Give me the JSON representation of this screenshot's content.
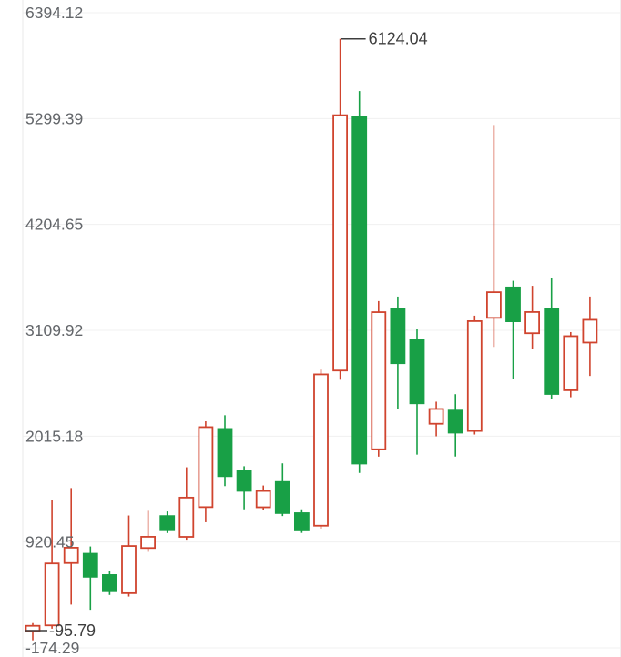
{
  "chart_data": {
    "type": "candlestick",
    "title": "",
    "xlabel": "",
    "ylabel": "",
    "grid": true,
    "legend": "none",
    "y_axis": {
      "min": -174.29,
      "max": 6394.12,
      "labels": [
        "6394.12",
        "5299.39",
        "4204.65",
        "3109.92",
        "2015.18",
        "920.45",
        "-174.29"
      ]
    },
    "candles": [
      {
        "open": 1.86,
        "close": 54.15,
        "low": -95.79,
        "high": 82.4
      },
      {
        "open": 58.6,
        "close": 698.94,
        "low": 24.33,
        "high": 1352.07
      },
      {
        "open": 703.1,
        "close": 861.77,
        "low": 273.52,
        "high": 1478.25
      },
      {
        "open": 799.4,
        "close": 561.08,
        "low": 219.8,
        "high": 874.16
      },
      {
        "open": 579.33,
        "close": 411.26,
        "low": 373.61,
        "high": 623.45
      },
      {
        "open": 391.55,
        "close": 879.02,
        "low": 356.72,
        "high": 1194.6
      },
      {
        "open": 858.43,
        "close": 974.55,
        "low": 818.9,
        "high": 1243.19
      },
      {
        "open": 1188.67,
        "close": 1051.34,
        "low": 1013.22,
        "high": 1236.48
      },
      {
        "open": 973.86,
        "close": 1379.62,
        "low": 944.6,
        "high": 1693.27
      },
      {
        "open": 1281.05,
        "close": 2108.33,
        "low": 1124.78,
        "high": 2168.92
      },
      {
        "open": 2089.71,
        "close": 1601.19,
        "low": 1498.25,
        "high": 2231.46
      },
      {
        "open": 1654.88,
        "close": 1449.36,
        "low": 1258.41,
        "high": 1703.93
      },
      {
        "open": 1279.52,
        "close": 1448.08,
        "low": 1251.1,
        "high": 1504.67
      },
      {
        "open": 1541.23,
        "close": 1219.47,
        "low": 1188.94,
        "high": 1733.85
      },
      {
        "open": 1218.72,
        "close": 1049.81,
        "low": 1014.55,
        "high": 1258.36
      },
      {
        "open": 1088.96,
        "close": 2654.1,
        "low": 1058.27,
        "high": 2703.42
      },
      {
        "open": 2693.75,
        "close": 5334.22,
        "low": 2598.61,
        "high": 6124.04
      },
      {
        "open": 5317.48,
        "close": 1731.55,
        "low": 1634.72,
        "high": 5583.9
      },
      {
        "open": 1879.34,
        "close": 3297.5,
        "low": 1803.27,
        "high": 3412.06
      },
      {
        "open": 3334.19,
        "close": 2769.41,
        "low": 2294.86,
        "high": 3458.73
      },
      {
        "open": 3013.57,
        "close": 2354.68,
        "low": 1823.95,
        "high": 3127.2
      },
      {
        "open": 2143.29,
        "close": 2296.12,
        "low": 2013.66,
        "high": 2371.54
      },
      {
        "open": 2279.83,
        "close": 2051.45,
        "low": 1804.31,
        "high": 2448.97
      },
      {
        "open": 2068.9,
        "close": 3204.78,
        "low": 2032.17,
        "high": 3261.34
      },
      {
        "open": 3238.56,
        "close": 3504.09,
        "low": 2938.24,
        "high": 5233.61
      },
      {
        "open": 3553.72,
        "close": 3203.15,
        "low": 2608.43,
        "high": 3621.88
      },
      {
        "open": 3079.64,
        "close": 3298.85,
        "low": 2918.37,
        "high": 3570.22
      },
      {
        "open": 3336.41,
        "close": 2451.26,
        "low": 2398.12,
        "high": 3649.57
      },
      {
        "open": 2489.73,
        "close": 3049.12,
        "low": 2417.58,
        "high": 3091.45
      },
      {
        "open": 2983.27,
        "close": 3218.66,
        "low": 2637.94,
        "high": 3459.1
      }
    ],
    "annotations": [
      {
        "name": "max",
        "label": "6124.04",
        "value": 6124.04,
        "candle_index": 16,
        "position": "top"
      },
      {
        "name": "min",
        "label": "-95.79",
        "value": -95.79,
        "candle_index": 0,
        "position": "bottom"
      }
    ],
    "colors": {
      "bullish": "#d0442e",
      "bullish_fill": "#ffffff",
      "bearish": "#18a046",
      "grid": "#f0f0f0",
      "axis_line": "#e9e9e9",
      "axis_label": "#63666a",
      "annotation": "#3e3e3e",
      "background": "#ffffff"
    }
  }
}
